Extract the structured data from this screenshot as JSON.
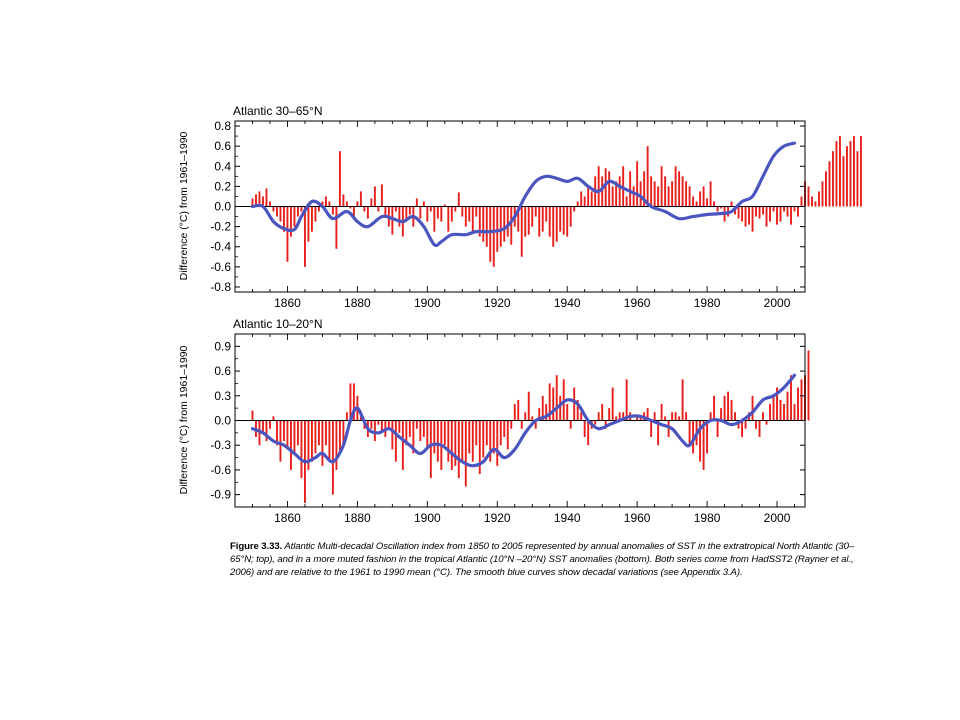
{
  "figure": {
    "caption_label": "Figure 3.33.",
    "caption_text": " Atlantic Multi-decadal Oscillation index from 1850 to 2005 represented by annual anomalies of SST in the extratropical North Atlantic (30–65°N; top), and in a more muted fashion in the tropical Atlantic (10°N –20°N) SST anomalies (bottom). Both series come from HadSST2 (Rayner et al., 2006) and are relative to the 1961 to 1990 mean (°C). The smooth blue curves show decadal variations (see Appendix 3.A)."
  },
  "colors": {
    "bars": "#e8201c",
    "smooth": "#4a55c0",
    "frame": "#000000"
  },
  "chart_data": [
    {
      "type": "bar",
      "title": "Atlantic 30–65°N",
      "ylabel": "Difference (°C) from 1961–1990",
      "xlabel": "",
      "xlim": [
        1845,
        2008
      ],
      "ylim": [
        -0.85,
        0.85
      ],
      "xticks": [
        1860,
        1880,
        1900,
        1920,
        1940,
        1960,
        1980,
        2000
      ],
      "yticks": [
        -0.8,
        -0.6,
        -0.4,
        -0.2,
        0.0,
        0.2,
        0.4,
        0.6,
        0.8
      ],
      "ytick_labels": [
        "-0.8",
        "-0.6",
        "-0.4",
        "-0.2",
        "0.0",
        "0.2",
        "0.4",
        "0.6",
        "0.8"
      ],
      "series": [
        {
          "type": "bar",
          "x_start": 1850,
          "values": [
            0.08,
            0.12,
            0.15,
            0.1,
            0.18,
            0.05,
            -0.05,
            -0.1,
            -0.15,
            -0.25,
            -0.55,
            -0.3,
            -0.2,
            -0.1,
            -0.05,
            -0.6,
            -0.35,
            -0.25,
            -0.15,
            -0.05,
            0.05,
            0.1,
            0.05,
            -0.08,
            -0.42,
            0.55,
            0.12,
            0.05,
            -0.02,
            -0.12,
            0.05,
            0.15,
            -0.05,
            -0.12,
            0.08,
            0.2,
            -0.05,
            0.22,
            -0.1,
            -0.2,
            -0.28,
            -0.05,
            -0.2,
            -0.3,
            -0.15,
            -0.08,
            -0.2,
            0.08,
            -0.12,
            0.05,
            -0.15,
            -0.05,
            -0.25,
            -0.12,
            -0.15,
            0.02,
            -0.25,
            -0.15,
            -0.05,
            0.14,
            -0.1,
            -0.2,
            -0.15,
            -0.25,
            -0.1,
            -0.3,
            -0.35,
            -0.4,
            -0.55,
            -0.6,
            -0.45,
            -0.4,
            -0.35,
            -0.3,
            -0.38,
            -0.2,
            -0.25,
            -0.5,
            -0.3,
            -0.28,
            -0.2,
            -0.1,
            -0.3,
            -0.25,
            -0.15,
            -0.3,
            -0.4,
            -0.35,
            -0.25,
            -0.28,
            -0.3,
            -0.2,
            -0.05,
            0.05,
            0.15,
            0.1,
            0.2,
            0.15,
            0.3,
            0.4,
            0.3,
            0.38,
            0.35,
            0.2,
            0.25,
            0.3,
            0.4,
            0.1,
            0.35,
            0.2,
            0.45,
            0.25,
            0.35,
            0.6,
            0.3,
            0.25,
            0.2,
            0.4,
            0.3,
            0.2,
            0.25,
            0.4,
            0.35,
            0.3,
            0.25,
            0.2,
            0.1,
            0.05,
            0.15,
            0.2,
            0.08,
            0.25,
            0.05,
            -0.05,
            -0.02,
            -0.15,
            -0.1,
            0.05,
            -0.08,
            -0.12,
            -0.15,
            -0.2,
            -0.18,
            -0.25,
            -0.1,
            -0.12,
            -0.08,
            -0.2,
            -0.15,
            -0.05,
            -0.18,
            -0.15,
            -0.05,
            -0.1,
            -0.18,
            -0.05,
            -0.1,
            0.1,
            0.25,
            0.2,
            0.1,
            0.05,
            0.15,
            0.25,
            0.35,
            0.45,
            0.55,
            0.65,
            0.7,
            0.5,
            0.6,
            0.65,
            0.7,
            0.55,
            0.7
          ]
        },
        {
          "type": "line",
          "x": [
            1850,
            1853,
            1856,
            1859,
            1862,
            1864,
            1867,
            1870,
            1873,
            1877,
            1880,
            1883,
            1887,
            1890,
            1893,
            1896,
            1899,
            1902,
            1904,
            1907,
            1911,
            1914,
            1918,
            1922,
            1925,
            1928,
            1931,
            1934,
            1937,
            1940,
            1943,
            1946,
            1949,
            1952,
            1955,
            1958,
            1961,
            1964,
            1968,
            1972,
            1976,
            1980,
            1984,
            1987,
            1990,
            1993,
            1996,
            1999,
            2002,
            2005
          ],
          "values": [
            0.0,
            0.0,
            -0.15,
            -0.22,
            -0.23,
            -0.1,
            0.05,
            0.0,
            -0.12,
            -0.05,
            -0.15,
            -0.2,
            -0.1,
            -0.12,
            -0.15,
            -0.1,
            -0.2,
            -0.38,
            -0.35,
            -0.28,
            -0.28,
            -0.25,
            -0.25,
            -0.22,
            -0.1,
            0.1,
            0.25,
            0.3,
            0.28,
            0.25,
            0.28,
            0.2,
            0.15,
            0.25,
            0.2,
            0.15,
            0.1,
            0.0,
            -0.05,
            -0.12,
            -0.1,
            -0.08,
            -0.07,
            -0.05,
            0.05,
            0.1,
            0.3,
            0.5,
            0.6,
            0.63
          ]
        }
      ]
    },
    {
      "type": "bar",
      "title": "Atlantic 10–20°N",
      "ylabel": "Difference (°C) from 1961–1990",
      "xlabel": "",
      "xlim": [
        1845,
        2008
      ],
      "ylim": [
        -1.05,
        1.05
      ],
      "xticks": [
        1860,
        1880,
        1900,
        1920,
        1940,
        1960,
        1980,
        2000
      ],
      "yticks": [
        -0.9,
        -0.6,
        -0.3,
        0.0,
        0.3,
        0.6,
        0.9
      ],
      "ytick_labels": [
        "-0.9",
        "-0.6",
        "-0.3",
        "0.0",
        "0.3",
        "0.6",
        "0.9"
      ],
      "series": [
        {
          "type": "bar",
          "x_start": 1850,
          "values": [
            0.12,
            -0.2,
            -0.3,
            -0.15,
            -0.25,
            -0.1,
            0.05,
            -0.3,
            -0.5,
            -0.25,
            -0.35,
            -0.6,
            -0.4,
            -0.3,
            -0.7,
            -1.0,
            -0.6,
            -0.5,
            -0.4,
            -0.3,
            -0.55,
            -0.3,
            -0.5,
            -0.9,
            -0.6,
            -0.4,
            -0.3,
            0.1,
            0.45,
            0.45,
            0.3,
            0.05,
            -0.1,
            -0.2,
            -0.1,
            -0.25,
            -0.05,
            -0.15,
            -0.2,
            -0.1,
            -0.35,
            -0.5,
            -0.15,
            -0.6,
            -0.3,
            -0.2,
            -0.4,
            -0.1,
            -0.25,
            -0.2,
            -0.35,
            -0.7,
            -0.4,
            -0.5,
            -0.6,
            -0.3,
            -0.5,
            -0.6,
            -0.55,
            -0.7,
            -0.5,
            -0.8,
            -0.4,
            -0.5,
            -0.3,
            -0.65,
            -0.45,
            -0.3,
            -0.5,
            -0.4,
            -0.55,
            -0.3,
            -0.2,
            -0.35,
            -0.1,
            0.2,
            0.25,
            -0.1,
            0.1,
            0.35,
            0.05,
            -0.1,
            0.15,
            0.3,
            0.2,
            0.45,
            0.4,
            0.55,
            0.3,
            0.5,
            0.2,
            -0.1,
            0.4,
            0.25,
            0.1,
            -0.2,
            -0.3,
            -0.1,
            -0.05,
            0.1,
            0.2,
            -0.1,
            0.15,
            0.4,
            0.05,
            0.1,
            0.1,
            0.5,
            0.1,
            0.0,
            0.05,
            0.05,
            0.1,
            0.15,
            -0.2,
            0.1,
            -0.3,
            0.2,
            0.05,
            -0.2,
            0.1,
            0.1,
            0.05,
            0.5,
            0.1,
            -0.3,
            -0.4,
            -0.3,
            -0.5,
            -0.6,
            -0.4,
            0.1,
            0.3,
            -0.2,
            0.15,
            0.3,
            0.35,
            0.25,
            0.1,
            -0.1,
            -0.2,
            -0.1,
            0.1,
            0.3,
            -0.1,
            -0.2,
            0.1,
            -0.05,
            0.2,
            0.3,
            0.4,
            0.25,
            0.2,
            0.35,
            0.55,
            0.2,
            0.4,
            0.5,
            0.55,
            0.85
          ]
        },
        {
          "type": "line",
          "x": [
            1850,
            1853,
            1856,
            1859,
            1862,
            1865,
            1868,
            1870,
            1873,
            1876,
            1878,
            1880,
            1883,
            1886,
            1889,
            1892,
            1895,
            1898,
            1901,
            1904,
            1907,
            1910,
            1913,
            1916,
            1919,
            1922,
            1925,
            1928,
            1931,
            1934,
            1937,
            1940,
            1943,
            1946,
            1949,
            1952,
            1955,
            1958,
            1961,
            1964,
            1967,
            1970,
            1973,
            1975,
            1978,
            1981,
            1984,
            1987,
            1990,
            1993,
            1996,
            1999,
            2002,
            2005
          ],
          "values": [
            -0.1,
            -0.15,
            -0.25,
            -0.3,
            -0.4,
            -0.5,
            -0.45,
            -0.4,
            -0.5,
            -0.3,
            0.0,
            0.15,
            -0.1,
            -0.15,
            -0.1,
            -0.2,
            -0.3,
            -0.4,
            -0.3,
            -0.3,
            -0.4,
            -0.5,
            -0.55,
            -0.5,
            -0.35,
            -0.45,
            -0.35,
            -0.15,
            0.0,
            0.05,
            0.15,
            0.25,
            0.2,
            0.0,
            -0.1,
            -0.05,
            0.0,
            0.05,
            0.05,
            0.0,
            -0.05,
            -0.1,
            -0.25,
            -0.3,
            -0.1,
            0.0,
            0.0,
            -0.05,
            0.0,
            0.1,
            0.25,
            0.3,
            0.4,
            0.55
          ]
        }
      ]
    }
  ]
}
